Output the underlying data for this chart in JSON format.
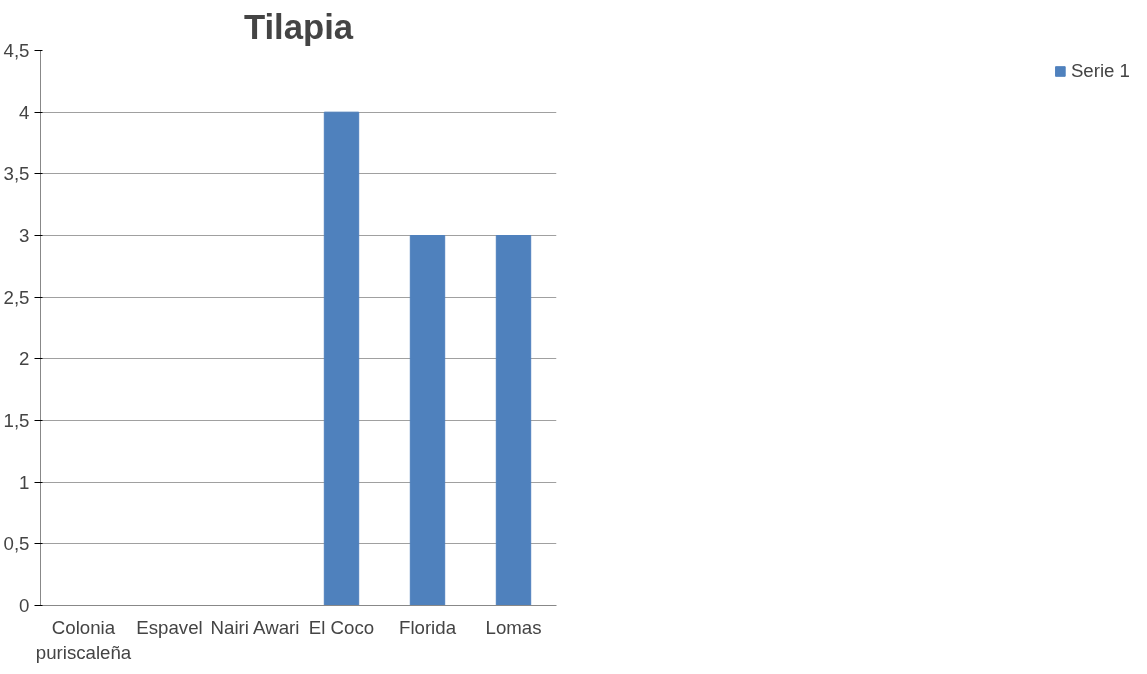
{
  "chart_data": {
    "type": "bar",
    "title": "Tilapia",
    "categories": [
      "Colonia puriscaleña",
      "Espavel",
      "Nairi Awari",
      "El Coco",
      "Florida",
      "Lomas"
    ],
    "series": [
      {
        "name": "Serie 1",
        "color": "#4f81bd",
        "values": [
          0,
          0,
          0,
          4,
          3,
          3
        ]
      }
    ],
    "ylim": [
      0,
      4.5
    ],
    "yticks": [
      0,
      {
        "value": 0.5,
        "label": "0,5"
      },
      1,
      {
        "value": 1.5,
        "label": "1,5"
      },
      2,
      {
        "value": 2.5,
        "label": "2,5"
      },
      3,
      {
        "value": 3.5,
        "label": "3,5"
      },
      4,
      {
        "value": 4.5,
        "label": "4,5"
      }
    ],
    "grid": "y",
    "legend": "right"
  }
}
